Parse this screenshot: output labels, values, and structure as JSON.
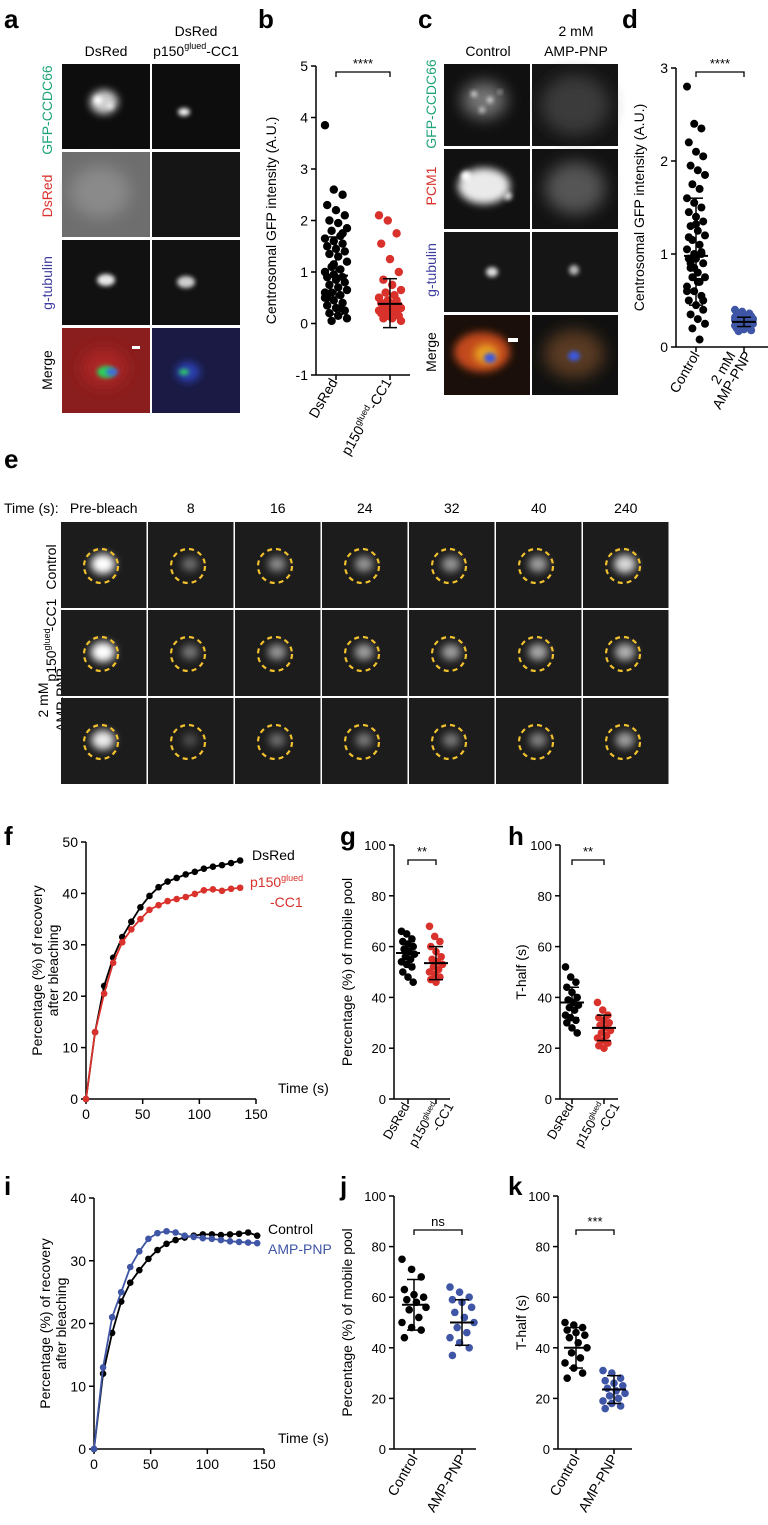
{
  "panel_letters": {
    "a": "a",
    "b": "b",
    "c": "c",
    "d": "d",
    "e": "e",
    "f": "f",
    "g": "g",
    "h": "h",
    "i": "i",
    "j": "j",
    "k": "k"
  },
  "colors": {
    "black": "#000000",
    "red": "#d9312b",
    "blue": "#3f55a5",
    "yellow": "#f2c12e",
    "green": "#1fa37a",
    "purple": "#3d3d9e"
  },
  "panel_a": {
    "col1": "DsRed",
    "col2_top": "DsRed",
    "col2_p150": "p150",
    "col2_sup": "glued",
    "col2_suffix": "-CC1",
    "rows": [
      "GFP-CCDC66",
      "DsRed",
      "g-tubulin",
      "Merge"
    ]
  },
  "panel_c": {
    "col1": "Control",
    "col2_line1": "2 mM",
    "col2_line2": "AMP-PNP",
    "rows": [
      "GFP-CCDC66",
      "PCM1",
      "g-tubulin",
      "Merge"
    ]
  },
  "panel_e": {
    "time_label": "Time (s):",
    "times": [
      "Pre-bleach",
      "8",
      "16",
      "24",
      "32",
      "40",
      "240"
    ],
    "row_labels": [
      "Control",
      "-CC1",
      "2 mM",
      "AMP-PNP"
    ],
    "p150_label": "p150",
    "glued": "glued"
  },
  "xlabel_dsred": "DsRed",
  "xlabel_p150": "p150",
  "xlabel_glued": "glued",
  "xlabel_cc1": "-CC1",
  "chart_data": [
    {
      "panel": "b",
      "type": "scatter",
      "ylabel": "Centrosomal GFP intensity (A.U.)",
      "categories": [
        "DsRed",
        "p150glued-CC1"
      ],
      "ylim": [
        -1,
        5
      ],
      "yticks": [
        -1,
        0,
        1,
        2,
        3,
        4,
        5
      ],
      "significance": "****",
      "series": [
        {
          "values": [
            3.85,
            2.6,
            2.5,
            2.3,
            2.2,
            2.1,
            2.0,
            1.95,
            1.85,
            1.8,
            1.7,
            1.65,
            1.6,
            1.55,
            1.5,
            1.45,
            1.4,
            1.35,
            1.3,
            1.2,
            1.1,
            1.05,
            1.0,
            0.95,
            0.9,
            0.9,
            0.85,
            0.8,
            0.75,
            0.7,
            0.65,
            0.6,
            0.55,
            0.5,
            0.45,
            0.4,
            0.35,
            0.3,
            0.25,
            0.2,
            0.15,
            0.1,
            0.05,
            0.3,
            0.6,
            1.15,
            1.75,
            0.5
          ],
          "mean": 0.93,
          "sd_low": 0.18,
          "sd_high": 1.68
        },
        {
          "values": [
            2.1,
            2.0,
            1.75,
            1.55,
            1.25,
            1.0,
            0.85,
            0.75,
            0.65,
            0.6,
            0.55,
            0.5,
            0.45,
            0.45,
            0.4,
            0.4,
            0.35,
            0.35,
            0.3,
            0.3,
            0.3,
            0.25,
            0.25,
            0.2,
            0.2,
            0.2,
            0.15,
            0.15,
            0.1,
            0.1,
            0.05,
            0.35,
            0.25,
            0.5,
            0.15,
            0.3
          ],
          "mean": 0.38,
          "sd_low": -0.08,
          "sd_high": 0.87
        }
      ]
    },
    {
      "panel": "d",
      "type": "scatter",
      "ylabel": "Centrosomal GFP intensity (A.U.)",
      "categories": [
        "Control",
        "2 mM AMP-PNP"
      ],
      "ylim": [
        0,
        3
      ],
      "yticks": [
        0,
        1,
        2,
        3
      ],
      "significance": "****",
      "series": [
        {
          "values": [
            2.8,
            2.4,
            2.35,
            2.2,
            2.1,
            2.05,
            1.95,
            1.9,
            1.85,
            1.75,
            1.7,
            1.6,
            1.55,
            1.5,
            1.45,
            1.4,
            1.35,
            1.3,
            1.25,
            1.2,
            1.15,
            1.1,
            1.05,
            1.0,
            1.0,
            0.95,
            0.95,
            0.9,
            0.85,
            0.8,
            0.75,
            0.75,
            0.7,
            0.65,
            0.6,
            0.55,
            0.5,
            0.45,
            0.4,
            0.35,
            0.3,
            0.25,
            0.2,
            0.08,
            0.6,
            0.85,
            1.02,
            1.18,
            1.32,
            0.5,
            0.9,
            0.7
          ],
          "mean": 0.98,
          "sd_low": 0.45,
          "sd_high": 1.6
        },
        {
          "values": [
            0.4,
            0.38,
            0.36,
            0.35,
            0.34,
            0.33,
            0.32,
            0.31,
            0.3,
            0.3,
            0.29,
            0.29,
            0.28,
            0.28,
            0.27,
            0.27,
            0.26,
            0.26,
            0.25,
            0.25,
            0.24,
            0.24,
            0.23,
            0.22,
            0.21,
            0.2,
            0.19,
            0.18,
            0.17,
            0.28,
            0.3,
            0.26,
            0.24,
            0.32,
            0.22,
            0.27
          ],
          "mean": 0.27,
          "sd_low": 0.22,
          "sd_high": 0.32
        }
      ]
    },
    {
      "panel": "f",
      "type": "line",
      "ylabel": "Percentage (%) of recovery after bleaching",
      "xlabel": "Time (s)",
      "xlim": [
        0,
        150
      ],
      "ylim": [
        0,
        50
      ],
      "xticks": [
        0,
        50,
        100,
        150
      ],
      "yticks": [
        0,
        10,
        20,
        30,
        40,
        50
      ],
      "x": [
        0,
        8,
        16,
        24,
        32,
        40,
        48,
        56,
        64,
        72,
        80,
        88,
        96,
        104,
        112,
        120,
        128,
        136
      ],
      "series": [
        {
          "name": "DsRed",
          "values": [
            0,
            13,
            22,
            27.5,
            31.5,
            34.5,
            37.3,
            39.5,
            41.2,
            42.3,
            43.0,
            43.7,
            44.2,
            44.8,
            45.2,
            45.5,
            45.9,
            46.4
          ]
        },
        {
          "name": "p150glued-CC1",
          "values": [
            0,
            13,
            20.5,
            26.5,
            30.5,
            33.0,
            35.0,
            36.8,
            37.7,
            38.5,
            38.9,
            39.3,
            39.9,
            40.6,
            40.8,
            40.5,
            40.9,
            41.1
          ]
        }
      ],
      "legend": [
        "DsRed",
        "p150",
        "glued",
        "-CC1"
      ]
    },
    {
      "panel": "g",
      "type": "scatter",
      "ylabel": "Percentage (%) of mobile pool",
      "categories": [
        "DsRed",
        "p150glued-CC1"
      ],
      "ylim": [
        0,
        100
      ],
      "yticks": [
        0,
        20,
        40,
        60,
        80,
        100
      ],
      "significance": "**",
      "series": [
        {
          "values": [
            66,
            65,
            63,
            62,
            61,
            60,
            59,
            58,
            57,
            56,
            55,
            54,
            53,
            52,
            50,
            48,
            46
          ],
          "mean": 57.5,
          "sd_low": 53,
          "sd_high": 62
        },
        {
          "values": [
            68,
            64,
            62,
            60,
            58,
            56,
            55,
            54,
            53,
            52,
            51,
            50,
            49,
            48,
            47,
            46
          ],
          "mean": 53.5,
          "sd_low": 47,
          "sd_high": 60
        }
      ]
    },
    {
      "panel": "h",
      "type": "scatter",
      "ylabel": "T-half (s)",
      "categories": [
        "DsRed",
        "p150glued-CC1"
      ],
      "ylim": [
        0,
        100
      ],
      "yticks": [
        0,
        20,
        40,
        60,
        80,
        100
      ],
      "significance": "**",
      "series": [
        {
          "values": [
            52,
            48,
            46,
            44,
            42,
            40,
            39,
            38,
            37,
            36,
            35,
            33,
            32,
            31,
            30,
            28,
            26
          ],
          "mean": 38,
          "sd_low": 32,
          "sd_high": 44
        },
        {
          "values": [
            38,
            35,
            33,
            32,
            31,
            30,
            29,
            28,
            27,
            26,
            25,
            24,
            23,
            22,
            21,
            20
          ],
          "mean": 28,
          "sd_low": 23,
          "sd_high": 33
        }
      ]
    },
    {
      "panel": "i",
      "type": "line",
      "ylabel": "Percentage (%) of recovery after bleaching",
      "xlabel": "Time (s)",
      "xlim": [
        0,
        150
      ],
      "ylim": [
        0,
        40
      ],
      "xticks": [
        0,
        50,
        100,
        150
      ],
      "yticks": [
        0,
        10,
        20,
        30,
        40
      ],
      "x": [
        0,
        8,
        16,
        24,
        32,
        40,
        48,
        56,
        64,
        72,
        80,
        88,
        96,
        104,
        112,
        120,
        128,
        136,
        144
      ],
      "series": [
        {
          "name": "Control",
          "values": [
            0,
            12,
            18.5,
            23.5,
            26.5,
            28.5,
            30.3,
            31.7,
            32.7,
            33.3,
            33.7,
            34.0,
            34.2,
            34.2,
            34.1,
            34.2,
            34.3,
            34.5,
            34.0
          ]
        },
        {
          "name": "AMP-PNP",
          "values": [
            0,
            13,
            21,
            25,
            29,
            31.5,
            33.5,
            34.4,
            34.7,
            34.5,
            34.0,
            33.8,
            33.6,
            33.5,
            33.3,
            33.1,
            33.0,
            32.9,
            32.8
          ]
        }
      ]
    },
    {
      "panel": "j",
      "type": "scatter",
      "ylabel": "Percentage (%) of mobile pool",
      "categories": [
        "Control",
        "AMP-PNP"
      ],
      "ylim": [
        0,
        100
      ],
      "yticks": [
        0,
        20,
        40,
        60,
        80,
        100
      ],
      "significance": "ns",
      "series": [
        {
          "values": [
            75,
            71,
            68,
            63,
            61,
            60,
            59,
            58,
            56,
            55,
            52,
            50,
            48,
            47,
            44
          ],
          "mean": 57,
          "sd_low": 47,
          "sd_high": 67
        },
        {
          "values": [
            64,
            62,
            60,
            59,
            58,
            56,
            54,
            52,
            50,
            48,
            46,
            44,
            42,
            40,
            37
          ],
          "mean": 50,
          "sd_low": 41,
          "sd_high": 59
        }
      ]
    },
    {
      "panel": "k",
      "type": "scatter",
      "ylabel": "T-half (s)",
      "categories": [
        "Control",
        "AMP-PNP"
      ],
      "ylim": [
        0,
        100
      ],
      "yticks": [
        0,
        20,
        40,
        60,
        80,
        100
      ],
      "significance": "***",
      "series": [
        {
          "values": [
            50,
            49,
            48,
            47,
            46,
            45,
            44,
            42,
            40,
            38,
            36,
            34,
            32,
            30,
            28
          ],
          "mean": 40,
          "sd_low": 32,
          "sd_high": 48
        },
        {
          "values": [
            31,
            30,
            28,
            27,
            26,
            25,
            24,
            23,
            22,
            21,
            20,
            19,
            18,
            17,
            16
          ],
          "mean": 23.5,
          "sd_low": 18,
          "sd_high": 29
        }
      ]
    }
  ]
}
